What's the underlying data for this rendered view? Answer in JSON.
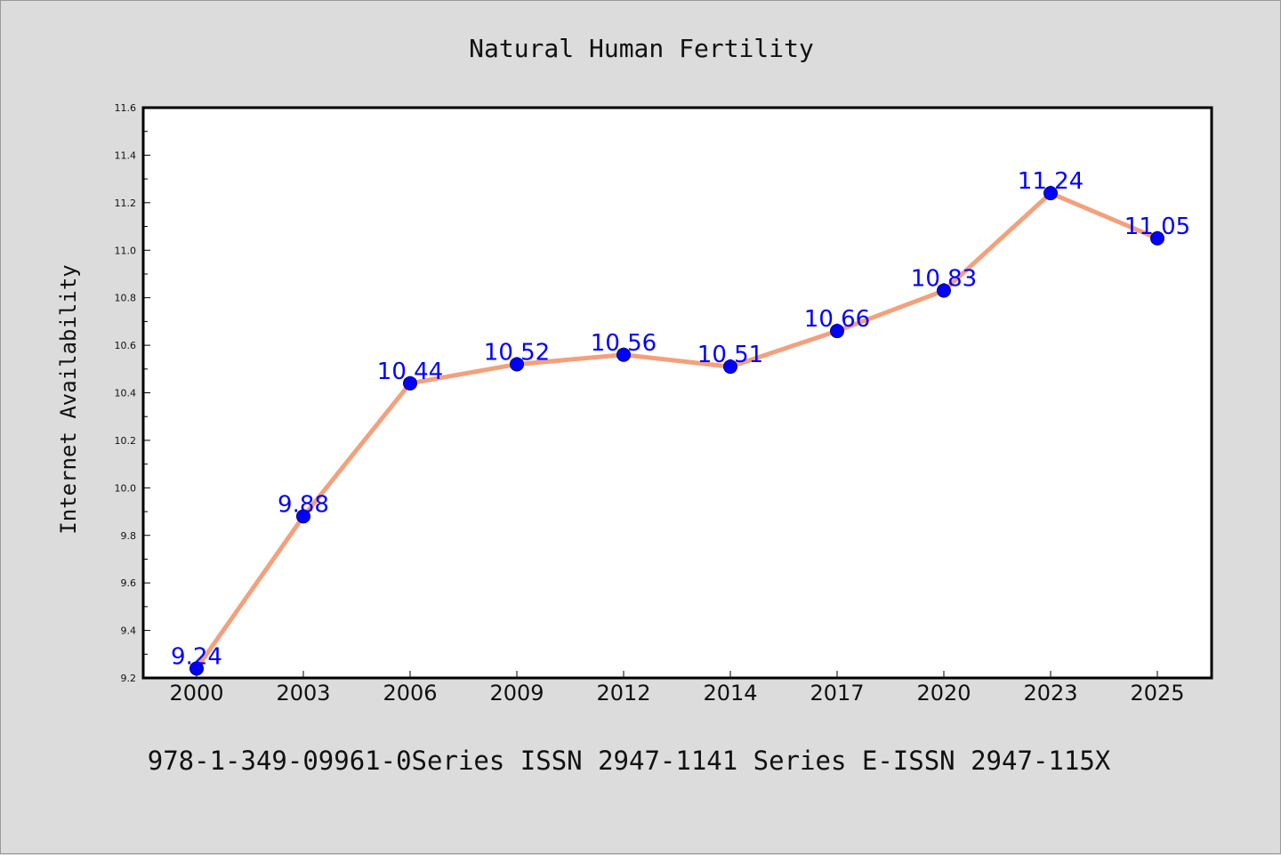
{
  "chart_data": {
    "type": "line",
    "title": "Natural Human Fertility",
    "xlabel": "",
    "ylabel": "Internet Availability",
    "categories": [
      "2000",
      "2003",
      "2006",
      "2009",
      "2012",
      "2014",
      "2017",
      "2020",
      "2023",
      "2025"
    ],
    "series": [
      {
        "values": [
          9.24,
          9.88,
          10.44,
          10.52,
          10.56,
          10.51,
          10.66,
          10.83,
          11.24,
          11.05
        ],
        "line_color": "#f4a07c",
        "marker_color": "#0000ff"
      }
    ],
    "data_labels": [
      "9.24",
      "9.88",
      "10.44",
      "10.52",
      "10.56",
      "10.51",
      "10.66",
      "10.83",
      "11.24",
      "11.05"
    ],
    "ylim": [
      9.2,
      11.6
    ],
    "yticks": [
      "9.2",
      "9.4",
      "9.6",
      "9.8",
      "10.0",
      "10.2",
      "10.4",
      "10.6",
      "10.8",
      "11.0",
      "11.2",
      "11.4",
      "11.6"
    ],
    "grid": false,
    "legend": "none"
  },
  "footer_text": "978-1-349-09961-0Series ISSN 2947-1141 Series E-ISSN 2947-115X",
  "colors": {
    "background": "#dcdcdc",
    "plot_background": "#ffffff",
    "line": "#f4a07c",
    "marker": "#0000ff",
    "data_label": "#0000ff"
  }
}
